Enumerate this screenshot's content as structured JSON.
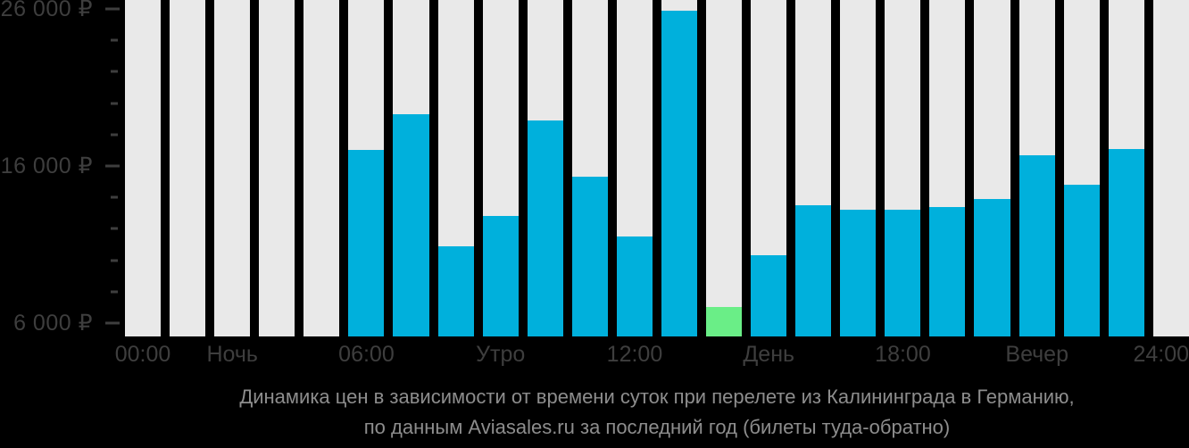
{
  "chart_data": {
    "type": "bar",
    "title": "Динамика цен в зависимости от времени суток при перелете из Калининграда в Германию,",
    "subtitle": "по данным Aviasales.ru за последний год (билеты туда-обратно)",
    "currency_symbol": "₽",
    "ylim": [
      5150,
      26570
    ],
    "bar_count": 24,
    "grid": false,
    "legend_position": "none",
    "values": [
      null,
      null,
      null,
      null,
      null,
      17000,
      19300,
      10900,
      12800,
      18900,
      15300,
      11500,
      25900,
      7000,
      10300,
      13500,
      13200,
      13200,
      13400,
      13900,
      16700,
      14800,
      17100,
      null
    ],
    "min_price_index": 13,
    "min_price_value": 7000,
    "y_ticks": [
      {
        "value": 26000,
        "label": "26 000 ₽",
        "major": true
      },
      {
        "value": 24000,
        "label": "",
        "major": false
      },
      {
        "value": 22000,
        "label": "",
        "major": false
      },
      {
        "value": 20000,
        "label": "",
        "major": false
      },
      {
        "value": 18000,
        "label": "",
        "major": false
      },
      {
        "value": 16000,
        "label": "16 000 ₽",
        "major": true
      },
      {
        "value": 14000,
        "label": "",
        "major": false
      },
      {
        "value": 12000,
        "label": "",
        "major": false
      },
      {
        "value": 10000,
        "label": "",
        "major": false
      },
      {
        "value": 8000,
        "label": "",
        "major": false
      },
      {
        "value": 6000,
        "label": "6 000 ₽",
        "major": true
      }
    ],
    "x_labels": [
      {
        "slot": 0,
        "label": "00:00"
      },
      {
        "slot": 2,
        "label": "Ночь"
      },
      {
        "slot": 5,
        "label": "06:00"
      },
      {
        "slot": 8,
        "label": "Утро"
      },
      {
        "slot": 11,
        "label": "12:00"
      },
      {
        "slot": 14,
        "label": "День"
      },
      {
        "slot": 17,
        "label": "18:00"
      },
      {
        "slot": 20,
        "label": "Вечер"
      },
      {
        "slot": 23,
        "label": "24:00"
      }
    ]
  },
  "colors": {
    "background": "#000000",
    "bar_track": "#e9e9e9",
    "bar_fill": "#00b0dc",
    "bar_fill_min": "#6aee87",
    "axis_text": "#3e3e3e",
    "tick": "#3e3e3e",
    "caption_text": "#8d8d8d"
  }
}
